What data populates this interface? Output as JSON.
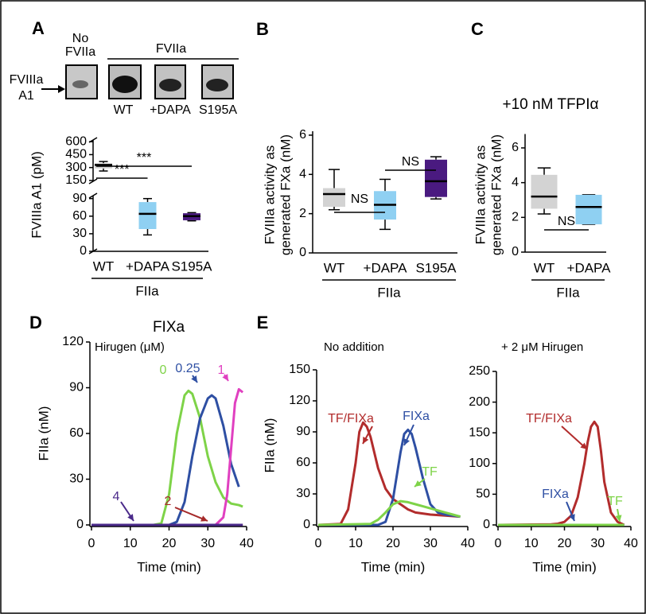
{
  "blot": {
    "panel": "A",
    "no_enzyme": [
      "No",
      "FVIIa"
    ],
    "enzyme": "FVIIa",
    "target": [
      "FVIIIa",
      "A1"
    ],
    "lanes": [
      "WT",
      "+DAPA",
      "S195A"
    ]
  },
  "chart_data": [
    {
      "type": "box",
      "ylabel": "FVIIIa A1 (pM)",
      "categories": [
        "WT",
        "+DAPA",
        "S195A"
      ],
      "group_label": "FIIa",
      "colors": [
        "#d3d3d3",
        "#8fd0f2",
        "#4a1a80"
      ],
      "stats": {
        "min": [
          260,
          28,
          52
        ],
        "q1": [
          290,
          38,
          53
        ],
        "median": [
          330,
          64,
          60
        ],
        "q3": [
          350,
          84,
          65
        ],
        "max": [
          370,
          90,
          66
        ]
      },
      "y_segments": [
        {
          "ylim": [
            0,
            95
          ],
          "yticks": [
            0,
            30,
            60,
            90
          ]
        },
        {
          "ylim": [
            140,
            620
          ],
          "yticks": [
            150,
            300,
            450,
            600
          ]
        }
      ],
      "significance": [
        {
          "label": "***",
          "categories": [
            "WT",
            "+DAPA"
          ]
        },
        {
          "label": "***",
          "categories": [
            "WT",
            "S195A"
          ]
        }
      ]
    },
    {
      "type": "box",
      "panel": "B",
      "ylabel": [
        "FVIIIa activity as",
        "generated FXa (nM)"
      ],
      "categories": [
        "WT",
        "+DAPA",
        "S195A"
      ],
      "group_label": "FIIa",
      "colors": [
        "#d3d3d3",
        "#8fd0f2",
        "#4a1a80"
      ],
      "stats": {
        "min": [
          2.2,
          1.2,
          2.75
        ],
        "q1": [
          2.35,
          1.7,
          2.85
        ],
        "median": [
          3.0,
          2.45,
          3.65
        ],
        "q3": [
          3.3,
          3.15,
          4.75
        ],
        "max": [
          4.25,
          3.75,
          4.9
        ]
      },
      "ylim": [
        0,
        6.2
      ],
      "yticks": [
        0,
        2,
        4,
        6
      ],
      "significance": [
        {
          "label": "NS",
          "categories": [
            "WT",
            "+DAPA"
          ]
        },
        {
          "label": "NS",
          "categories": [
            "+DAPA",
            "S195A"
          ]
        }
      ]
    },
    {
      "type": "box",
      "panel": "C",
      "title": "+10 nM TFPIα",
      "ylabel": [
        "FVIIIa activity as",
        "generated FXa (nM)"
      ],
      "categories": [
        "WT",
        "+DAPA"
      ],
      "group_label": "FIIa",
      "colors": [
        "#d3d3d3",
        "#8fd0f2"
      ],
      "stats": {
        "min": [
          2.2,
          1.6
        ],
        "q1": [
          2.5,
          1.6
        ],
        "median": [
          3.2,
          2.6
        ],
        "q3": [
          4.45,
          3.3
        ],
        "max": [
          4.85,
          3.3
        ]
      },
      "ylim": [
        0,
        6.8
      ],
      "yticks": [
        0,
        2,
        4,
        6
      ],
      "significance": [
        {
          "label": "NS",
          "categories": [
            "WT",
            "+DAPA"
          ]
        }
      ]
    },
    {
      "type": "line",
      "panel": "D",
      "title": "FIXa",
      "subtitle": "Hirugen (μM)",
      "xlabel": "Time (min)",
      "ylabel": "FIIa (nM)",
      "xlim": [
        0,
        40
      ],
      "xticks": [
        0,
        10,
        20,
        30,
        40
      ],
      "ylim": [
        0,
        120
      ],
      "yticks": [
        0,
        30,
        60,
        90,
        120
      ],
      "series": [
        {
          "name": "0",
          "color": "#7ed348",
          "x": [
            0,
            16,
            18,
            20,
            22,
            24,
            25,
            26,
            28,
            30,
            32,
            34,
            36,
            38,
            39
          ],
          "values": [
            0,
            0,
            1,
            20,
            60,
            85,
            88,
            86,
            70,
            45,
            28,
            18,
            14,
            13,
            12
          ]
        },
        {
          "name": "0.25",
          "color": "#2e4fa3",
          "x": [
            0,
            20,
            22,
            24,
            26,
            28,
            30,
            31,
            32,
            34,
            36,
            38
          ],
          "values": [
            0,
            0,
            2,
            15,
            45,
            70,
            83,
            85,
            83,
            65,
            40,
            25
          ]
        },
        {
          "name": "1",
          "color": "#e040c0",
          "x": [
            0,
            32,
            34,
            35,
            36,
            37,
            38,
            39
          ],
          "values": [
            0,
            0,
            5,
            20,
            50,
            80,
            89,
            87
          ]
        },
        {
          "name": "2",
          "color": "#a52a2a",
          "x": [
            0,
            39
          ],
          "values": [
            0,
            0
          ]
        },
        {
          "name": "4",
          "color": "#4b2a8a",
          "x": [
            0,
            39
          ],
          "values": [
            0,
            0
          ]
        }
      ]
    },
    {
      "type": "line",
      "panel": "E",
      "subtitle": "No addition",
      "xlabel": "Time (min)",
      "ylabel": "FIIa (nM)",
      "xlim": [
        0,
        40
      ],
      "xticks": [
        0,
        10,
        20,
        30,
        40
      ],
      "ylim": [
        0,
        150
      ],
      "yticks": [
        0,
        30,
        60,
        90,
        120,
        150
      ],
      "series": [
        {
          "name": "TF/FIXa",
          "color": "#b22c2c",
          "x": [
            0,
            6,
            8,
            10,
            11,
            12,
            13,
            14,
            16,
            18,
            20,
            22,
            24,
            26,
            30,
            34,
            38
          ],
          "values": [
            0,
            1,
            15,
            60,
            90,
            99,
            95,
            85,
            55,
            35,
            25,
            20,
            15,
            12,
            10,
            9,
            8
          ]
        },
        {
          "name": "FIXa",
          "color": "#2e4fa3",
          "x": [
            0,
            16,
            18,
            20,
            22,
            23,
            24,
            25,
            26,
            28,
            30,
            32,
            34,
            36,
            38
          ],
          "values": [
            0,
            0,
            3,
            25,
            70,
            88,
            92,
            88,
            75,
            45,
            20,
            12,
            10,
            9,
            8
          ]
        },
        {
          "name": "TF",
          "color": "#7ed348",
          "x": [
            0,
            14,
            16,
            18,
            20,
            22,
            24,
            26,
            28,
            30,
            32,
            34,
            36,
            38
          ],
          "values": [
            0,
            1,
            5,
            12,
            20,
            23,
            22,
            20,
            18,
            16,
            14,
            12,
            10,
            8
          ]
        }
      ]
    },
    {
      "type": "line",
      "subtitle": "+ 2 μM Hirugen",
      "xlabel": "Time (min)",
      "xlim": [
        0,
        40
      ],
      "xticks": [
        0,
        10,
        20,
        30,
        40
      ],
      "ylim": [
        0,
        250
      ],
      "yticks": [
        0,
        50,
        100,
        150,
        200,
        250
      ],
      "series": [
        {
          "name": "TF/FIXa",
          "color": "#b22c2c",
          "x": [
            0,
            16,
            18,
            20,
            22,
            24,
            26,
            27,
            28,
            29,
            30,
            31,
            32,
            34,
            36,
            38
          ],
          "values": [
            0,
            1,
            2,
            5,
            15,
            45,
            100,
            135,
            160,
            168,
            160,
            120,
            70,
            20,
            5,
            0
          ]
        },
        {
          "name": "FIXa",
          "color": "#2e4fa3",
          "x": [
            0,
            38
          ],
          "values": [
            0,
            0
          ]
        },
        {
          "name": "TF",
          "color": "#7ed348",
          "x": [
            0,
            38
          ],
          "values": [
            0,
            0
          ]
        }
      ]
    }
  ]
}
